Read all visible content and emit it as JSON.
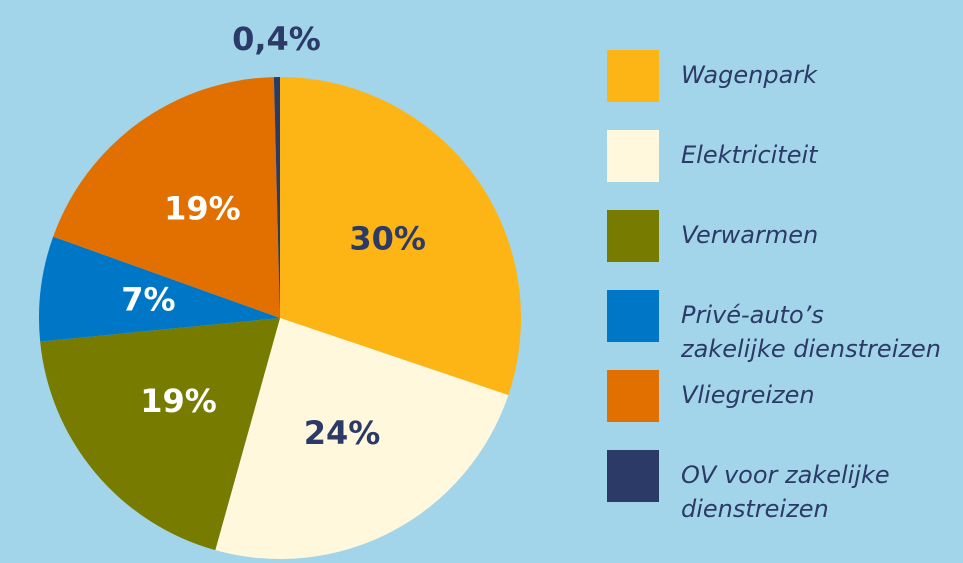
{
  "chart_data": {
    "type": "pie",
    "categories": [
      "Wagenpark",
      "Elektriciteit",
      "Verwarmen",
      "Privé-auto’s\nzakelijke dienstreizen",
      "Vliegreizen",
      "OV voor zakelijke\ndienstreizen"
    ],
    "values": [
      30,
      24,
      19,
      7,
      19,
      0.4
    ],
    "value_labels": [
      "30%",
      "24%",
      "19%",
      "7%",
      "19%",
      "0,4%"
    ],
    "colors": [
      "#fdb515",
      "#fff8dc",
      "#777c00",
      "#0077c6",
      "#e17000",
      "#2b3a66"
    ],
    "label_colors": [
      "#2b3a66",
      "#2b3a66",
      "#ffffff",
      "#ffffff",
      "#ffffff",
      "#2b3a66"
    ],
    "legend": "right"
  }
}
